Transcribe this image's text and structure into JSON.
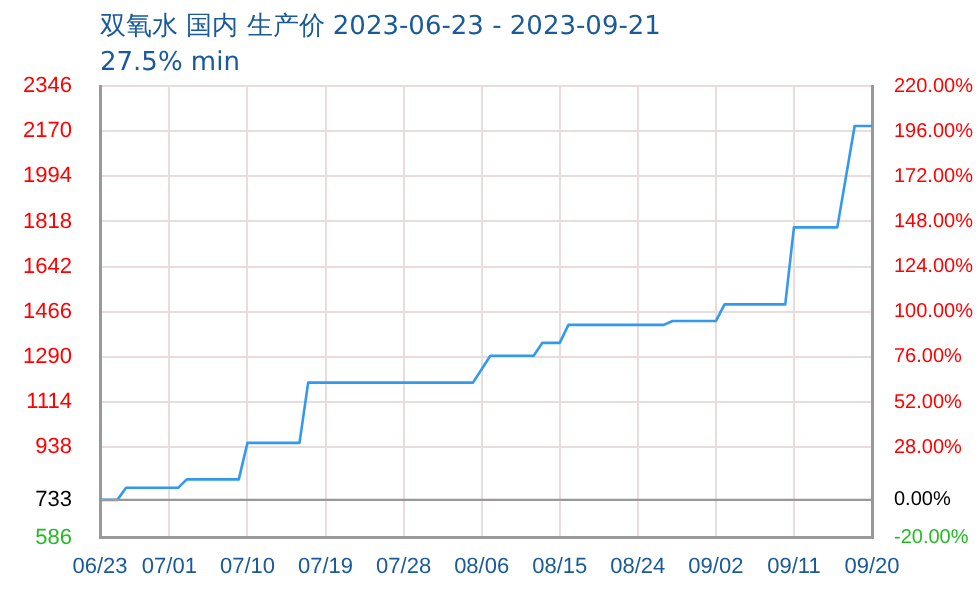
{
  "chart_data": {
    "type": "line",
    "title": "双氧水 国内 生产价 2023-06-23 - 2023-09-21",
    "subtitle": "27.5% min",
    "x": [
      "2023-06-23",
      "2023-06-25",
      "2023-06-26",
      "2023-07-02",
      "2023-07-03",
      "2023-07-09",
      "2023-07-10",
      "2023-07-16",
      "2023-07-17",
      "2023-08-05",
      "2023-08-07",
      "2023-08-12",
      "2023-08-13",
      "2023-08-15",
      "2023-08-16",
      "2023-08-27",
      "2023-08-28",
      "2023-09-02",
      "2023-09-03",
      "2023-09-10",
      "2023-09-11",
      "2023-09-16",
      "2023-09-18",
      "2023-09-20"
    ],
    "series": [
      {
        "color": "#3399ee",
        "values": [
          733,
          733,
          780,
          780,
          813,
          813,
          955,
          955,
          1190,
          1190,
          1295,
          1295,
          1345,
          1345,
          1415,
          1415,
          1430,
          1430,
          1495,
          1495,
          1795,
          1795,
          2190,
          2190
        ]
      }
    ],
    "xlim": [
      "2023-06-23",
      "2023-09-20"
    ],
    "xticks": [
      {
        "value": "2023-06-23",
        "label": "06/23"
      },
      {
        "value": "2023-07-01",
        "label": "07/01"
      },
      {
        "value": "2023-07-10",
        "label": "07/10"
      },
      {
        "value": "2023-07-19",
        "label": "07/19"
      },
      {
        "value": "2023-07-28",
        "label": "07/28"
      },
      {
        "value": "2023-08-06",
        "label": "08/06"
      },
      {
        "value": "2023-08-15",
        "label": "08/15"
      },
      {
        "value": "2023-08-24",
        "label": "08/24"
      },
      {
        "value": "2023-09-02",
        "label": "09/02"
      },
      {
        "value": "2023-09-11",
        "label": "09/11"
      },
      {
        "value": "2023-09-20",
        "label": "09/20"
      }
    ],
    "ylim": [
      586,
      2346
    ],
    "yticks": [
      586,
      733,
      938,
      1114,
      1290,
      1466,
      1642,
      1818,
      1994,
      2170,
      2346
    ],
    "y2lim": [
      -20,
      220
    ],
    "y2ticks": [
      {
        "value": -20,
        "label": "-20.00%"
      },
      {
        "value": 0,
        "label": "0.00%"
      },
      {
        "value": 28,
        "label": "28.00%"
      },
      {
        "value": 52,
        "label": "52.00%"
      },
      {
        "value": 76,
        "label": "76.00%"
      },
      {
        "value": 100,
        "label": "100.00%"
      },
      {
        "value": 124,
        "label": "124.00%"
      },
      {
        "value": 148,
        "label": "148.00%"
      },
      {
        "value": 172,
        "label": "172.00%"
      },
      {
        "value": 196,
        "label": "196.00%"
      },
      {
        "value": 220,
        "label": "220.00%"
      }
    ],
    "ref_lines": [
      {
        "axis": "y",
        "value": 733,
        "color": "#999999"
      }
    ],
    "grid": true,
    "legend": false,
    "marker": "none",
    "line_style": "solid"
  }
}
